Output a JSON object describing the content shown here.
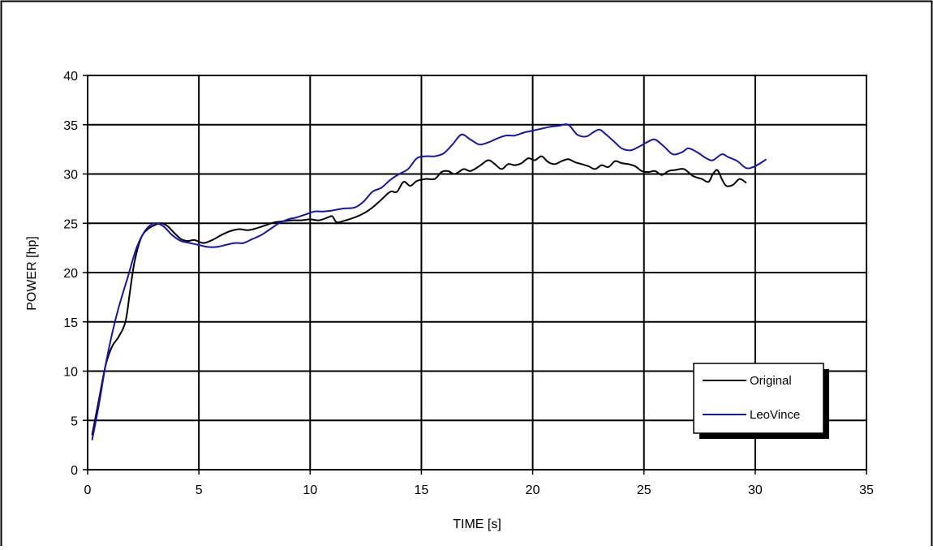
{
  "chart_data": {
    "type": "line",
    "title": "",
    "xlabel": "TIME [s]",
    "ylabel": "POWER [hp]",
    "xlim": [
      0,
      35
    ],
    "ylim": [
      0,
      40
    ],
    "xticks": [
      0,
      5,
      10,
      15,
      20,
      25,
      30,
      35
    ],
    "yticks": [
      0,
      5,
      10,
      15,
      20,
      25,
      30,
      35,
      40
    ],
    "grid": true,
    "legend": "inside-bottom-right",
    "series": [
      {
        "name": "Original",
        "color": "#000000",
        "points": [
          [
            0.2,
            3.5
          ],
          [
            0.5,
            7
          ],
          [
            0.8,
            10.5
          ],
          [
            1.1,
            12.5
          ],
          [
            1.4,
            13.5
          ],
          [
            1.7,
            15
          ],
          [
            1.9,
            18
          ],
          [
            2.1,
            21
          ],
          [
            2.4,
            23.5
          ],
          [
            2.7,
            24.4
          ],
          [
            3.0,
            24.8
          ],
          [
            3.3,
            25.0
          ],
          [
            3.6,
            24.7
          ],
          [
            3.9,
            24.0
          ],
          [
            4.2,
            23.4
          ],
          [
            4.5,
            23.2
          ],
          [
            4.8,
            23.3
          ],
          [
            5.2,
            23.0
          ],
          [
            5.6,
            23.3
          ],
          [
            6.0,
            23.8
          ],
          [
            6.4,
            24.2
          ],
          [
            6.8,
            24.4
          ],
          [
            7.2,
            24.3
          ],
          [
            7.6,
            24.5
          ],
          [
            8.0,
            24.8
          ],
          [
            8.4,
            25.1
          ],
          [
            8.8,
            25.2
          ],
          [
            9.2,
            25.3
          ],
          [
            9.6,
            25.3
          ],
          [
            10.0,
            25.4
          ],
          [
            10.4,
            25.3
          ],
          [
            10.8,
            25.6
          ],
          [
            11.0,
            25.7
          ],
          [
            11.2,
            25.1
          ],
          [
            11.6,
            25.3
          ],
          [
            12.0,
            25.6
          ],
          [
            12.4,
            26.0
          ],
          [
            12.8,
            26.6
          ],
          [
            13.2,
            27.4
          ],
          [
            13.6,
            28.2
          ],
          [
            13.9,
            28.2
          ],
          [
            14.2,
            29.2
          ],
          [
            14.5,
            28.8
          ],
          [
            14.8,
            29.3
          ],
          [
            15.2,
            29.5
          ],
          [
            15.6,
            29.5
          ],
          [
            15.9,
            30.2
          ],
          [
            16.2,
            30.3
          ],
          [
            16.5,
            30.0
          ],
          [
            16.9,
            30.5
          ],
          [
            17.2,
            30.3
          ],
          [
            17.6,
            30.8
          ],
          [
            18.0,
            31.4
          ],
          [
            18.3,
            31.0
          ],
          [
            18.6,
            30.5
          ],
          [
            18.9,
            31.0
          ],
          [
            19.2,
            30.9
          ],
          [
            19.5,
            31.1
          ],
          [
            19.8,
            31.6
          ],
          [
            20.1,
            31.4
          ],
          [
            20.4,
            31.8
          ],
          [
            20.7,
            31.2
          ],
          [
            21.0,
            31.0
          ],
          [
            21.3,
            31.3
          ],
          [
            21.6,
            31.5
          ],
          [
            21.9,
            31.2
          ],
          [
            22.2,
            31.0
          ],
          [
            22.5,
            30.8
          ],
          [
            22.8,
            30.5
          ],
          [
            23.1,
            30.9
          ],
          [
            23.4,
            30.7
          ],
          [
            23.7,
            31.3
          ],
          [
            24.0,
            31.1
          ],
          [
            24.3,
            31.0
          ],
          [
            24.6,
            30.8
          ],
          [
            24.9,
            30.3
          ],
          [
            25.2,
            30.2
          ],
          [
            25.5,
            30.3
          ],
          [
            25.8,
            29.9
          ],
          [
            26.1,
            30.3
          ],
          [
            26.4,
            30.4
          ],
          [
            26.8,
            30.5
          ],
          [
            27.2,
            29.8
          ],
          [
            27.6,
            29.5
          ],
          [
            27.9,
            29.2
          ],
          [
            28.1,
            30.0
          ],
          [
            28.3,
            30.4
          ],
          [
            28.5,
            29.5
          ],
          [
            28.7,
            28.8
          ],
          [
            29.0,
            28.9
          ],
          [
            29.3,
            29.5
          ],
          [
            29.6,
            29.1
          ]
        ]
      },
      {
        "name": "LeoVince",
        "color": "#1414b4",
        "points": [
          [
            0.2,
            3.0
          ],
          [
            0.5,
            6.5
          ],
          [
            0.8,
            10.5
          ],
          [
            1.1,
            13.8
          ],
          [
            1.4,
            16.5
          ],
          [
            1.8,
            19.5
          ],
          [
            2.2,
            22.5
          ],
          [
            2.6,
            24.3
          ],
          [
            3.0,
            25.0
          ],
          [
            3.4,
            24.7
          ],
          [
            3.8,
            23.8
          ],
          [
            4.2,
            23.2
          ],
          [
            4.6,
            23.0
          ],
          [
            5.0,
            22.8
          ],
          [
            5.4,
            22.6
          ],
          [
            5.8,
            22.6
          ],
          [
            6.2,
            22.8
          ],
          [
            6.6,
            23.0
          ],
          [
            7.0,
            23.0
          ],
          [
            7.4,
            23.4
          ],
          [
            7.8,
            23.8
          ],
          [
            8.2,
            24.4
          ],
          [
            8.6,
            25.0
          ],
          [
            9.0,
            25.4
          ],
          [
            9.4,
            25.6
          ],
          [
            9.8,
            25.9
          ],
          [
            10.2,
            26.2
          ],
          [
            10.6,
            26.2
          ],
          [
            11.0,
            26.3
          ],
          [
            11.5,
            26.5
          ],
          [
            12.0,
            26.6
          ],
          [
            12.4,
            27.2
          ],
          [
            12.8,
            28.2
          ],
          [
            13.2,
            28.6
          ],
          [
            13.6,
            29.4
          ],
          [
            14.0,
            30.0
          ],
          [
            14.4,
            30.5
          ],
          [
            14.8,
            31.6
          ],
          [
            15.2,
            31.8
          ],
          [
            15.6,
            31.8
          ],
          [
            16.0,
            32.1
          ],
          [
            16.4,
            33.0
          ],
          [
            16.8,
            34.0
          ],
          [
            17.2,
            33.5
          ],
          [
            17.6,
            33.0
          ],
          [
            18.0,
            33.2
          ],
          [
            18.4,
            33.6
          ],
          [
            18.8,
            33.9
          ],
          [
            19.2,
            33.9
          ],
          [
            19.6,
            34.2
          ],
          [
            20.0,
            34.4
          ],
          [
            20.4,
            34.6
          ],
          [
            20.8,
            34.8
          ],
          [
            21.2,
            34.9
          ],
          [
            21.6,
            35.0
          ],
          [
            22.0,
            34.0
          ],
          [
            22.4,
            33.8
          ],
          [
            22.7,
            34.2
          ],
          [
            23.0,
            34.5
          ],
          [
            23.3,
            34.0
          ],
          [
            23.7,
            33.2
          ],
          [
            24.0,
            32.6
          ],
          [
            24.4,
            32.4
          ],
          [
            24.8,
            32.8
          ],
          [
            25.2,
            33.3
          ],
          [
            25.5,
            33.5
          ],
          [
            25.9,
            32.8
          ],
          [
            26.3,
            32.0
          ],
          [
            26.7,
            32.2
          ],
          [
            27.0,
            32.6
          ],
          [
            27.4,
            32.2
          ],
          [
            27.8,
            31.6
          ],
          [
            28.1,
            31.4
          ],
          [
            28.5,
            32.0
          ],
          [
            28.8,
            31.7
          ],
          [
            29.2,
            31.3
          ],
          [
            29.6,
            30.6
          ],
          [
            30.0,
            30.8
          ],
          [
            30.5,
            31.5
          ]
        ]
      }
    ]
  }
}
